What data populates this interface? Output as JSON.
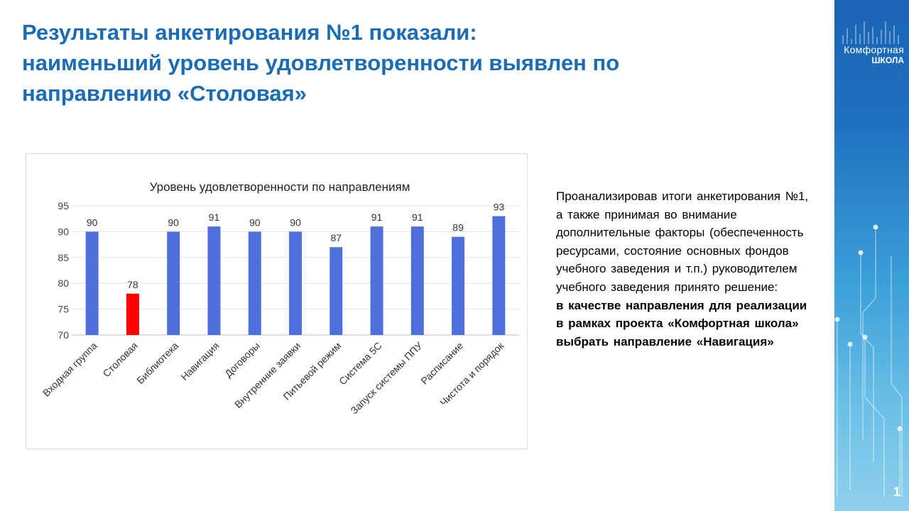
{
  "title_lines": [
    "Результаты анкетирования №1 показали:",
    "наименьший уровень удовлетворенности выявлен по",
    "направлению «Столовая»"
  ],
  "note": {
    "text": "Проанализировав итоги анкетирования №1, а также принимая во внимание дополнительные факторы (обеспеченность ресурсами, состояние основных фондов учебного заведения и т.п.) руководителем учебного заведения принято решение:",
    "bold": "в качестве направления для реализации в рамках проекта «Комфортная школа» выбрать направление «Навигация»"
  },
  "logo": {
    "line1": "Комфортная",
    "line2": "ШКОЛА"
  },
  "page_number": "1",
  "colors": {
    "bar": "#4f6fdc",
    "highlight": "#ff0000",
    "title": "#1a6cb4"
  },
  "chart_data": {
    "type": "bar",
    "title": "Уровень удовлетворенности по направлениям",
    "categories": [
      "Входная группа",
      "Столовая",
      "Библиотека",
      "Навигация",
      "Договоры",
      "Внутренние заявки",
      "Питьевой режим",
      "Система 5С",
      "Запуск системы ППУ",
      "Расписание",
      "Чистота и порядок"
    ],
    "values": [
      90,
      78,
      90,
      91,
      90,
      90,
      87,
      91,
      91,
      89,
      93
    ],
    "highlight_index": 1,
    "ylim": [
      70,
      95
    ],
    "yticks": [
      70,
      75,
      80,
      85,
      90,
      95
    ],
    "grid": true,
    "xlabel": "",
    "ylabel": ""
  }
}
